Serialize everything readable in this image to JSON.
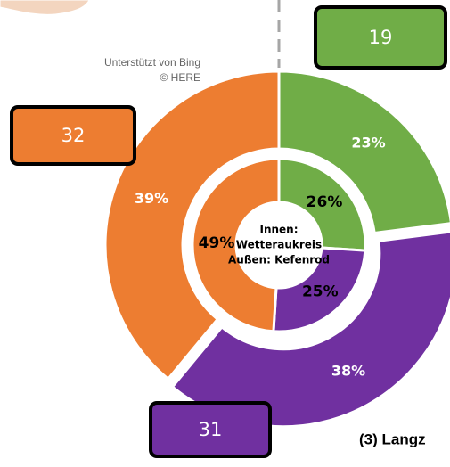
{
  "chart_data": {
    "type": "donut",
    "rings": [
      {
        "values": [
          26,
          25,
          49
        ],
        "value_labels": [
          "26%",
          "25%",
          "49%"
        ],
        "colors": [
          "#70ad47",
          "#7030a0",
          "#ed7d31"
        ]
      },
      {
        "values": [
          23,
          38,
          39
        ],
        "value_labels": [
          "23%",
          "38%",
          "39%"
        ],
        "colors": [
          "#70ad47",
          "#7030a0",
          "#ed7d31"
        ]
      }
    ],
    "center_text": [
      "Innen:",
      "Wetteraukreis",
      "Außen: Kefenrod"
    ],
    "callouts": [
      {
        "value": 19,
        "color": "#70ad47"
      },
      {
        "value": 32,
        "color": "#ed7d31"
      },
      {
        "value": 31,
        "color": "#7030a0"
      }
    ],
    "attribution": [
      "Unterstützt von Bing",
      "© HERE"
    ],
    "caption": "(3) Langz"
  }
}
